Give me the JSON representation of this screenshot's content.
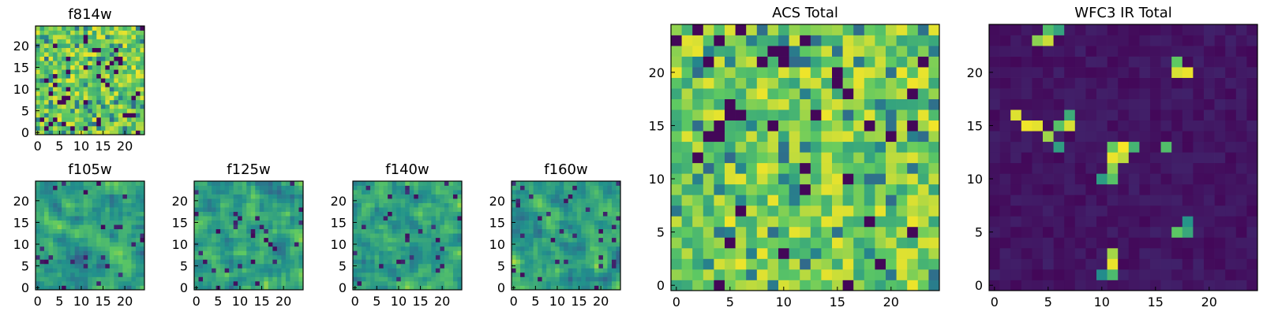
{
  "chart_data": [
    {
      "type": "heatmap",
      "title": "f814w",
      "grid_size": 25,
      "colormap": "viridis",
      "xticks": [
        0,
        5,
        10,
        15,
        20
      ],
      "yticks": [
        0,
        5,
        10,
        15,
        20
      ],
      "xlim": [
        -0.5,
        24.5
      ],
      "ylim": [
        -0.5,
        24.5
      ],
      "pattern": "noise-high",
      "seed": 11
    },
    {
      "type": "heatmap",
      "title": "f105w",
      "grid_size": 25,
      "colormap": "viridis",
      "xticks": [
        0,
        5,
        10,
        15,
        20
      ],
      "yticks": [
        0,
        5,
        10,
        15,
        20
      ],
      "xlim": [
        -0.5,
        24.5
      ],
      "ylim": [
        -0.5,
        24.5
      ],
      "pattern": "noise-smooth",
      "seed": 21
    },
    {
      "type": "heatmap",
      "title": "f125w",
      "grid_size": 25,
      "colormap": "viridis",
      "xticks": [
        0,
        5,
        10,
        15,
        20
      ],
      "yticks": [
        0,
        5,
        10,
        15,
        20
      ],
      "xlim": [
        -0.5,
        24.5
      ],
      "ylim": [
        -0.5,
        24.5
      ],
      "pattern": "noise-smooth",
      "seed": 31
    },
    {
      "type": "heatmap",
      "title": "f140w",
      "grid_size": 25,
      "colormap": "viridis",
      "xticks": [
        0,
        5,
        10,
        15,
        20
      ],
      "yticks": [
        0,
        5,
        10,
        15,
        20
      ],
      "xlim": [
        -0.5,
        24.5
      ],
      "ylim": [
        -0.5,
        24.5
      ],
      "pattern": "noise-smooth",
      "seed": 41
    },
    {
      "type": "heatmap",
      "title": "f160w",
      "grid_size": 25,
      "colormap": "viridis",
      "xticks": [
        0,
        5,
        10,
        15,
        20
      ],
      "yticks": [
        0,
        5,
        10,
        15,
        20
      ],
      "xlim": [
        -0.5,
        24.5
      ],
      "ylim": [
        -0.5,
        24.5
      ],
      "pattern": "noise-smooth",
      "seed": 51
    },
    {
      "type": "heatmap",
      "title": "ACS Total",
      "grid_size": 25,
      "colormap": "viridis",
      "xticks": [
        0,
        5,
        10,
        15,
        20
      ],
      "yticks": [
        0,
        5,
        10,
        15,
        20
      ],
      "xlim": [
        -0.5,
        24.5
      ],
      "ylim": [
        -0.5,
        24.5
      ],
      "pattern": "noise-high",
      "seed": 61
    },
    {
      "type": "heatmap",
      "title": "WFC3 IR Total",
      "grid_size": 25,
      "colormap": "viridis",
      "xticks": [
        0,
        5,
        10,
        15,
        20
      ],
      "yticks": [
        0,
        5,
        10,
        15,
        20
      ],
      "xlim": [
        -0.5,
        24.5
      ],
      "ylim": [
        -0.5,
        24.5
      ],
      "pattern": "sparse-sources",
      "seed": 71,
      "sources": [
        {
          "x": 4,
          "y": 23,
          "value": 0.82
        },
        {
          "x": 5,
          "y": 23,
          "value": 0.92
        },
        {
          "x": 6,
          "y": 24,
          "value": 0.58
        },
        {
          "x": 5,
          "y": 24,
          "value": 0.7
        },
        {
          "x": 2,
          "y": 16,
          "value": 0.95
        },
        {
          "x": 3,
          "y": 15,
          "value": 0.98
        },
        {
          "x": 4,
          "y": 15,
          "value": 0.96
        },
        {
          "x": 5,
          "y": 14,
          "value": 0.85
        },
        {
          "x": 6,
          "y": 15,
          "value": 0.72
        },
        {
          "x": 7,
          "y": 15,
          "value": 0.94
        },
        {
          "x": 7,
          "y": 16,
          "value": 0.62
        },
        {
          "x": 6,
          "y": 13,
          "value": 0.56
        },
        {
          "x": 11,
          "y": 13,
          "value": 0.76
        },
        {
          "x": 12,
          "y": 13,
          "value": 0.99
        },
        {
          "x": 13,
          "y": 13,
          "value": 0.65
        },
        {
          "x": 11,
          "y": 12,
          "value": 0.97
        },
        {
          "x": 12,
          "y": 12,
          "value": 0.9
        },
        {
          "x": 11,
          "y": 11,
          "value": 0.82
        },
        {
          "x": 10,
          "y": 10,
          "value": 0.55
        },
        {
          "x": 11,
          "y": 10,
          "value": 0.72
        },
        {
          "x": 17,
          "y": 21,
          "value": 0.75
        },
        {
          "x": 17,
          "y": 20,
          "value": 0.94
        },
        {
          "x": 18,
          "y": 20,
          "value": 0.97
        },
        {
          "x": 16,
          "y": 13,
          "value": 0.7
        },
        {
          "x": 18,
          "y": 5,
          "value": 0.6
        },
        {
          "x": 17,
          "y": 5,
          "value": 0.74
        },
        {
          "x": 18,
          "y": 6,
          "value": 0.52
        },
        {
          "x": 11,
          "y": 3,
          "value": 0.86
        },
        {
          "x": 11,
          "y": 2,
          "value": 0.97
        },
        {
          "x": 11,
          "y": 1,
          "value": 0.68
        },
        {
          "x": 10,
          "y": 1,
          "value": 0.48
        }
      ]
    }
  ]
}
